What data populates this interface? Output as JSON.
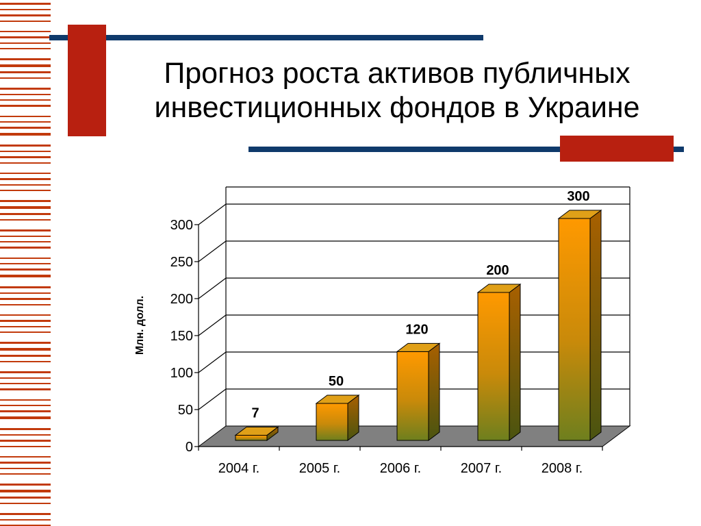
{
  "slide": {
    "title_line1": "Прогноз роста активов публичных",
    "title_line2": "инвестиционных фондов в Украине"
  },
  "colors": {
    "accent_red": "#b82010",
    "accent_navy": "#0f3a6b",
    "bar_top": "#ff9900",
    "bar_bottom": "#6e7f1e",
    "floor": "#808080"
  },
  "chart_data": {
    "type": "bar",
    "categories": [
      "2004 г.",
      "2005 г.",
      "2006 г.",
      "2007 г.",
      "2008 г."
    ],
    "values": [
      7,
      50,
      120,
      200,
      300
    ],
    "data_labels": [
      "7",
      "50",
      "120",
      "200",
      "300"
    ],
    "title": "",
    "xlabel": "",
    "ylabel": "Млн. долл.",
    "ylim": [
      0,
      300
    ],
    "yticks": [
      0,
      50,
      100,
      150,
      200,
      250,
      300
    ],
    "grid": true,
    "legend": "none",
    "style": "3d-column"
  }
}
